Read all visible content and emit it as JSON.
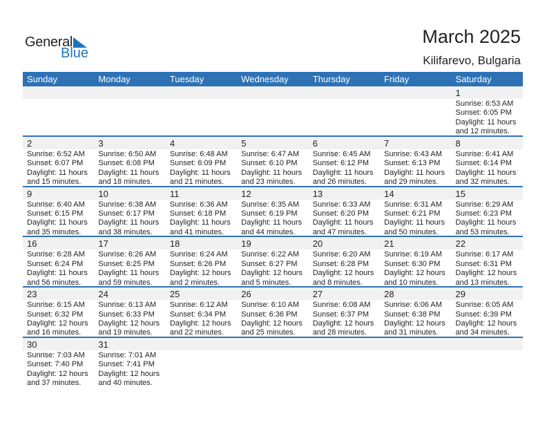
{
  "logo": {
    "text1": "General",
    "text2": "Blue"
  },
  "title": "March 2025",
  "location": "Kilifarevo, Bulgaria",
  "colors": {
    "header": "#2e72b5",
    "accent": "#1f74bd",
    "date_band": "#f1f1f1"
  },
  "weekdays": [
    "Sunday",
    "Monday",
    "Tuesday",
    "Wednesday",
    "Thursday",
    "Friday",
    "Saturday"
  ],
  "weeks": [
    [
      null,
      null,
      null,
      null,
      null,
      null,
      {
        "day": "1",
        "sunrise": "Sunrise: 6:53 AM",
        "sunset": "Sunset: 6:05 PM",
        "daylight1": "Daylight: 11 hours",
        "daylight2": "and 12 minutes."
      }
    ],
    [
      {
        "day": "2",
        "sunrise": "Sunrise: 6:52 AM",
        "sunset": "Sunset: 6:07 PM",
        "daylight1": "Daylight: 11 hours",
        "daylight2": "and 15 minutes."
      },
      {
        "day": "3",
        "sunrise": "Sunrise: 6:50 AM",
        "sunset": "Sunset: 6:08 PM",
        "daylight1": "Daylight: 11 hours",
        "daylight2": "and 18 minutes."
      },
      {
        "day": "4",
        "sunrise": "Sunrise: 6:48 AM",
        "sunset": "Sunset: 6:09 PM",
        "daylight1": "Daylight: 11 hours",
        "daylight2": "and 21 minutes."
      },
      {
        "day": "5",
        "sunrise": "Sunrise: 6:47 AM",
        "sunset": "Sunset: 6:10 PM",
        "daylight1": "Daylight: 11 hours",
        "daylight2": "and 23 minutes."
      },
      {
        "day": "6",
        "sunrise": "Sunrise: 6:45 AM",
        "sunset": "Sunset: 6:12 PM",
        "daylight1": "Daylight: 11 hours",
        "daylight2": "and 26 minutes."
      },
      {
        "day": "7",
        "sunrise": "Sunrise: 6:43 AM",
        "sunset": "Sunset: 6:13 PM",
        "daylight1": "Daylight: 11 hours",
        "daylight2": "and 29 minutes."
      },
      {
        "day": "8",
        "sunrise": "Sunrise: 6:41 AM",
        "sunset": "Sunset: 6:14 PM",
        "daylight1": "Daylight: 11 hours",
        "daylight2": "and 32 minutes."
      }
    ],
    [
      {
        "day": "9",
        "sunrise": "Sunrise: 6:40 AM",
        "sunset": "Sunset: 6:15 PM",
        "daylight1": "Daylight: 11 hours",
        "daylight2": "and 35 minutes."
      },
      {
        "day": "10",
        "sunrise": "Sunrise: 6:38 AM",
        "sunset": "Sunset: 6:17 PM",
        "daylight1": "Daylight: 11 hours",
        "daylight2": "and 38 minutes."
      },
      {
        "day": "11",
        "sunrise": "Sunrise: 6:36 AM",
        "sunset": "Sunset: 6:18 PM",
        "daylight1": "Daylight: 11 hours",
        "daylight2": "and 41 minutes."
      },
      {
        "day": "12",
        "sunrise": "Sunrise: 6:35 AM",
        "sunset": "Sunset: 6:19 PM",
        "daylight1": "Daylight: 11 hours",
        "daylight2": "and 44 minutes."
      },
      {
        "day": "13",
        "sunrise": "Sunrise: 6:33 AM",
        "sunset": "Sunset: 6:20 PM",
        "daylight1": "Daylight: 11 hours",
        "daylight2": "and 47 minutes."
      },
      {
        "day": "14",
        "sunrise": "Sunrise: 6:31 AM",
        "sunset": "Sunset: 6:21 PM",
        "daylight1": "Daylight: 11 hours",
        "daylight2": "and 50 minutes."
      },
      {
        "day": "15",
        "sunrise": "Sunrise: 6:29 AM",
        "sunset": "Sunset: 6:23 PM",
        "daylight1": "Daylight: 11 hours",
        "daylight2": "and 53 minutes."
      }
    ],
    [
      {
        "day": "16",
        "sunrise": "Sunrise: 6:28 AM",
        "sunset": "Sunset: 6:24 PM",
        "daylight1": "Daylight: 11 hours",
        "daylight2": "and 56 minutes."
      },
      {
        "day": "17",
        "sunrise": "Sunrise: 6:26 AM",
        "sunset": "Sunset: 6:25 PM",
        "daylight1": "Daylight: 11 hours",
        "daylight2": "and 59 minutes."
      },
      {
        "day": "18",
        "sunrise": "Sunrise: 6:24 AM",
        "sunset": "Sunset: 6:26 PM",
        "daylight1": "Daylight: 12 hours",
        "daylight2": "and 2 minutes."
      },
      {
        "day": "19",
        "sunrise": "Sunrise: 6:22 AM",
        "sunset": "Sunset: 6:27 PM",
        "daylight1": "Daylight: 12 hours",
        "daylight2": "and 5 minutes."
      },
      {
        "day": "20",
        "sunrise": "Sunrise: 6:20 AM",
        "sunset": "Sunset: 6:28 PM",
        "daylight1": "Daylight: 12 hours",
        "daylight2": "and 8 minutes."
      },
      {
        "day": "21",
        "sunrise": "Sunrise: 6:19 AM",
        "sunset": "Sunset: 6:30 PM",
        "daylight1": "Daylight: 12 hours",
        "daylight2": "and 10 minutes."
      },
      {
        "day": "22",
        "sunrise": "Sunrise: 6:17 AM",
        "sunset": "Sunset: 6:31 PM",
        "daylight1": "Daylight: 12 hours",
        "daylight2": "and 13 minutes."
      }
    ],
    [
      {
        "day": "23",
        "sunrise": "Sunrise: 6:15 AM",
        "sunset": "Sunset: 6:32 PM",
        "daylight1": "Daylight: 12 hours",
        "daylight2": "and 16 minutes."
      },
      {
        "day": "24",
        "sunrise": "Sunrise: 6:13 AM",
        "sunset": "Sunset: 6:33 PM",
        "daylight1": "Daylight: 12 hours",
        "daylight2": "and 19 minutes."
      },
      {
        "day": "25",
        "sunrise": "Sunrise: 6:12 AM",
        "sunset": "Sunset: 6:34 PM",
        "daylight1": "Daylight: 12 hours",
        "daylight2": "and 22 minutes."
      },
      {
        "day": "26",
        "sunrise": "Sunrise: 6:10 AM",
        "sunset": "Sunset: 6:36 PM",
        "daylight1": "Daylight: 12 hours",
        "daylight2": "and 25 minutes."
      },
      {
        "day": "27",
        "sunrise": "Sunrise: 6:08 AM",
        "sunset": "Sunset: 6:37 PM",
        "daylight1": "Daylight: 12 hours",
        "daylight2": "and 28 minutes."
      },
      {
        "day": "28",
        "sunrise": "Sunrise: 6:06 AM",
        "sunset": "Sunset: 6:38 PM",
        "daylight1": "Daylight: 12 hours",
        "daylight2": "and 31 minutes."
      },
      {
        "day": "29",
        "sunrise": "Sunrise: 6:05 AM",
        "sunset": "Sunset: 6:39 PM",
        "daylight1": "Daylight: 12 hours",
        "daylight2": "and 34 minutes."
      }
    ],
    [
      {
        "day": "30",
        "sunrise": "Sunrise: 7:03 AM",
        "sunset": "Sunset: 7:40 PM",
        "daylight1": "Daylight: 12 hours",
        "daylight2": "and 37 minutes."
      },
      {
        "day": "31",
        "sunrise": "Sunrise: 7:01 AM",
        "sunset": "Sunset: 7:41 PM",
        "daylight1": "Daylight: 12 hours",
        "daylight2": "and 40 minutes."
      },
      null,
      null,
      null,
      null,
      null
    ]
  ]
}
